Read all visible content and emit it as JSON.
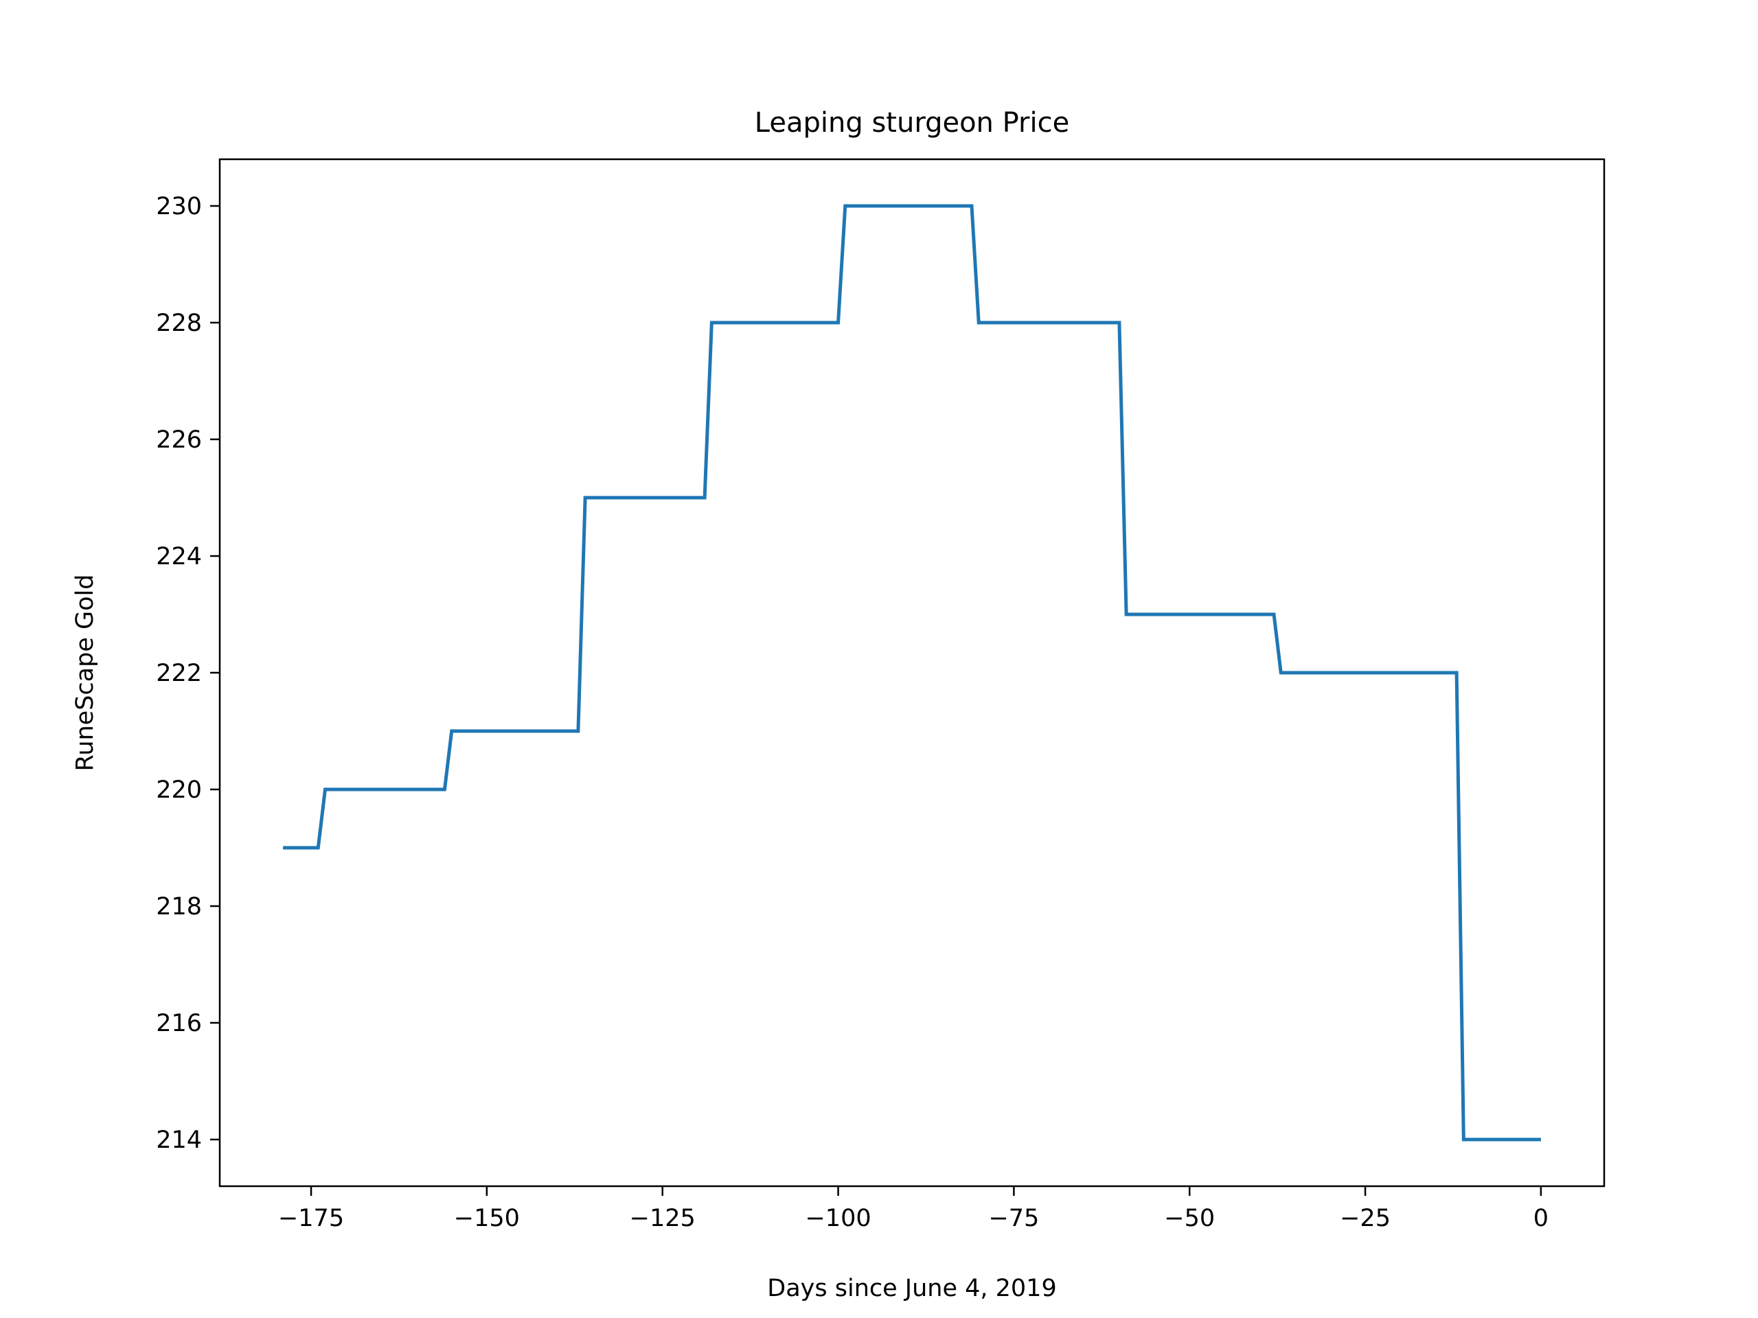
{
  "chart_data": {
    "type": "line",
    "title": "Leaping sturgeon Price",
    "xlabel": "Days since June 4, 2019",
    "ylabel": "RuneScape Gold",
    "xlim": [
      -188,
      9
    ],
    "ylim": [
      213.2,
      230.8
    ],
    "xticks": [
      -175,
      -150,
      -125,
      -100,
      -75,
      -50,
      -25,
      0
    ],
    "yticks": [
      214,
      216,
      218,
      220,
      222,
      224,
      226,
      228,
      230
    ],
    "xtick_labels": [
      "−175",
      "−150",
      "−125",
      "−100",
      "−75",
      "−50",
      "−25",
      "0"
    ],
    "ytick_labels": [
      "214",
      "216",
      "218",
      "220",
      "222",
      "224",
      "226",
      "228",
      "230"
    ],
    "grid": false,
    "series": [
      {
        "color": "#1f77b4",
        "x": [
          -179,
          -174,
          -173,
          -156,
          -155,
          -137,
          -136,
          -119,
          -118,
          -100,
          -99,
          -81,
          -80,
          -60,
          -59,
          -38,
          -37,
          -12,
          -11,
          0
        ],
        "y": [
          219,
          219,
          220,
          220,
          221,
          221,
          225,
          225,
          228,
          228,
          230,
          230,
          228,
          228,
          223,
          223,
          222,
          222,
          214,
          214
        ]
      }
    ]
  }
}
